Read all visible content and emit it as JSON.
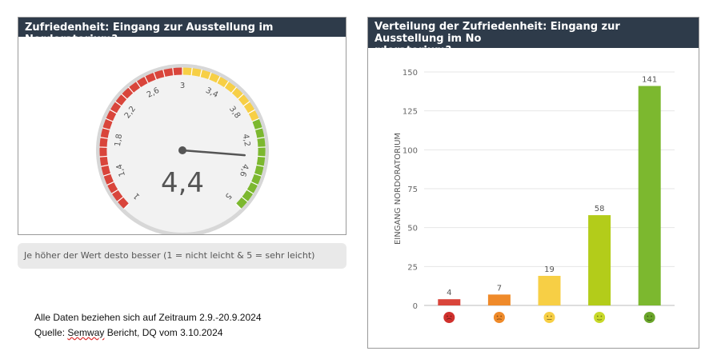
{
  "gauge_panel": {
    "title": "Zufriedenheit: Eingang zur Ausstellung im Nordoratorium?",
    "value_label": "4,4",
    "note": "Je höher der Wert desto besser (1 = nicht leicht & 5 = sehr leicht)"
  },
  "bar_panel": {
    "title_line1": "Verteilung der Zufriedenheit: Eingang zur Ausstellung im No",
    "title_line2": "rdoratorium?"
  },
  "footer": {
    "line1": "Alle Daten beziehen sich auf Zeitraum 2.9.-20.9.2024",
    "line2_prefix": "Quelle: ",
    "line2_underlined": "Semway",
    "line2_suffix": " Bericht, DQ vom 3.10.2024"
  },
  "colors": {
    "header_bg": "#2e3b4a",
    "red": "#d9453b",
    "orange": "#ef8a2a",
    "yellow": "#f7cf45",
    "lime": "#b3cc1a",
    "green": "#7cb82f"
  },
  "chart_data": [
    {
      "type": "gauge",
      "value": 4.4,
      "min": 1,
      "max": 5,
      "tick_labels": [
        "1",
        "1,4",
        "1,8",
        "2,2",
        "2,6",
        "3",
        "3,4",
        "3,8",
        "4,2",
        "4,6",
        "5"
      ],
      "bands": [
        {
          "from": 1,
          "to": 3,
          "color": "#d9453b"
        },
        {
          "from": 3,
          "to": 4,
          "color": "#f7cf45"
        },
        {
          "from": 4,
          "to": 5,
          "color": "#7cb82f"
        }
      ],
      "value_label": "4,4"
    },
    {
      "type": "bar",
      "categories": [
        "sehr unzufrieden",
        "unzufrieden",
        "neutral",
        "zufrieden",
        "sehr zufrieden"
      ],
      "values": [
        4,
        7,
        19,
        58,
        141
      ],
      "bar_colors": [
        "#d9453b",
        "#ef8a2a",
        "#f7cf45",
        "#b3cc1a",
        "#7cb82f"
      ],
      "icon_colors": [
        "#d0312d",
        "#ef8a2a",
        "#f7cf45",
        "#c8d92a",
        "#6aa52a"
      ],
      "ylabel": "EINGANG NORDORATORIUM",
      "ylim": [
        0,
        150
      ],
      "yticks": [
        0,
        25,
        50,
        75,
        100,
        125,
        150
      ],
      "grid": true
    }
  ]
}
